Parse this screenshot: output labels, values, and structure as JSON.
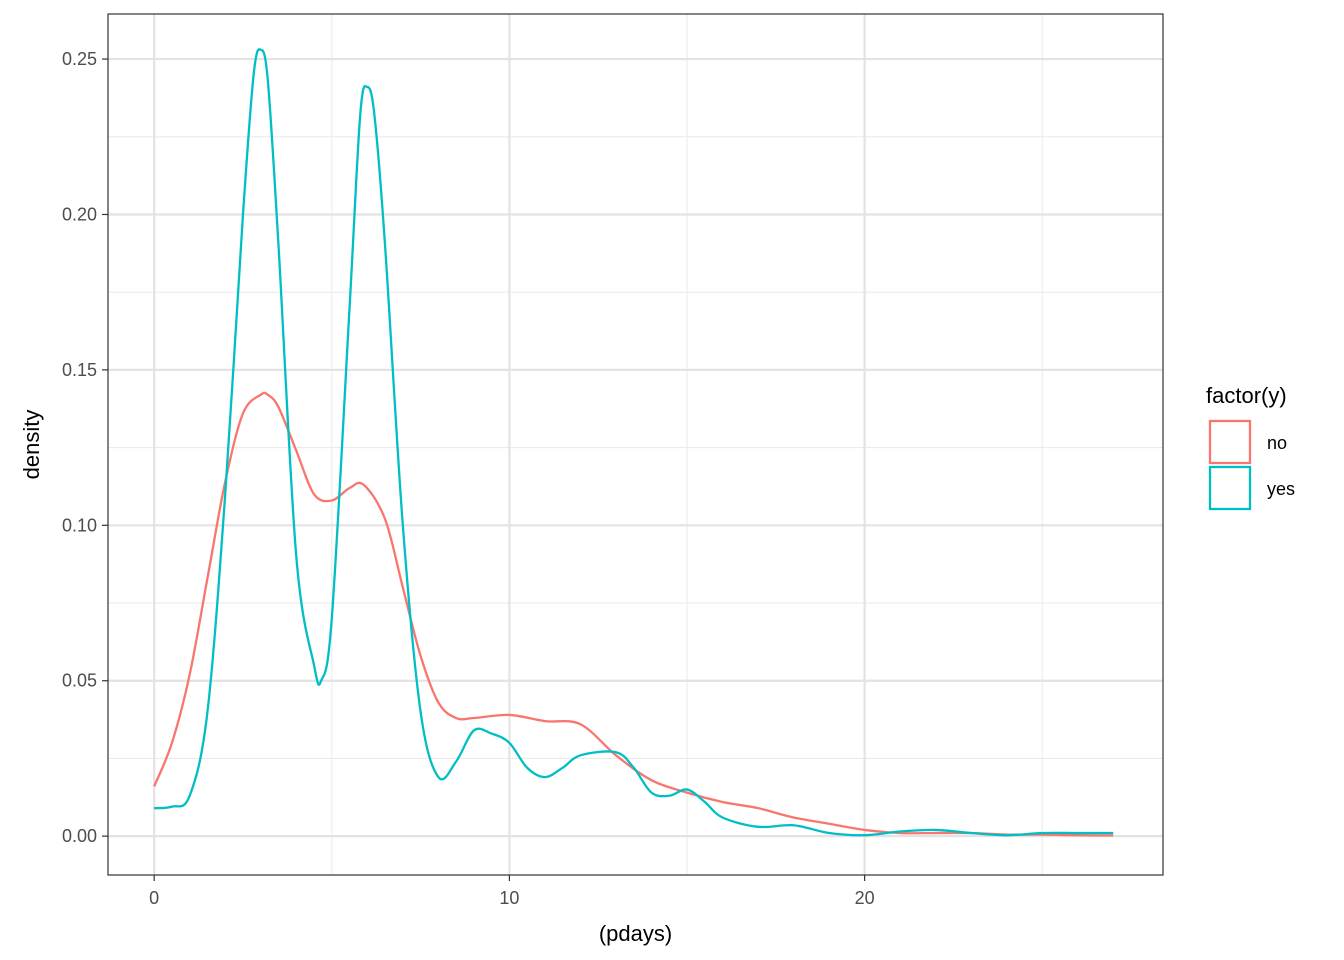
{
  "chart_data": {
    "type": "line",
    "xlabel": "(pdays)",
    "ylabel": "density",
    "xlim": [
      -1.3,
      28.4
    ],
    "ylim": [
      -0.0125,
      0.2645
    ],
    "x_ticks": [
      0,
      10,
      20
    ],
    "x_tick_labels": [
      "0",
      "10",
      "20"
    ],
    "x_minor_ticks": [
      5,
      15,
      25
    ],
    "y_ticks": [
      0,
      0.05,
      0.1,
      0.15,
      0.2,
      0.25
    ],
    "y_tick_labels": [
      "0.00",
      "0.05",
      "0.10",
      "0.15",
      "0.20",
      "0.25"
    ],
    "y_minor_ticks": [
      0.025,
      0.075,
      0.125,
      0.175,
      0.225
    ],
    "grid": true,
    "legend": {
      "title": "factor(y)",
      "position": "right"
    },
    "series": [
      {
        "name": "no",
        "color": "#F8766D",
        "x": [
          0,
          0.5,
          1,
          1.5,
          2,
          2.5,
          3,
          3.2,
          3.5,
          4,
          4.5,
          5,
          5.5,
          5.9,
          6.5,
          7,
          7.5,
          8,
          8.5,
          9,
          10,
          11,
          12,
          13,
          14,
          15,
          16,
          17,
          18,
          19,
          20,
          21,
          22,
          23,
          24,
          25,
          26,
          27
        ],
        "y": [
          0.016,
          0.03,
          0.052,
          0.083,
          0.114,
          0.136,
          0.142,
          0.142,
          0.138,
          0.124,
          0.11,
          0.108,
          0.112,
          0.113,
          0.102,
          0.08,
          0.058,
          0.043,
          0.038,
          0.038,
          0.039,
          0.037,
          0.036,
          0.026,
          0.018,
          0.014,
          0.011,
          0.009,
          0.006,
          0.004,
          0.002,
          0.001,
          0.001,
          0.001,
          0.0005,
          0.0005,
          0.0003,
          0.0002
        ]
      },
      {
        "name": "yes",
        "color": "#00BFC4",
        "x": [
          0,
          0.5,
          1,
          1.5,
          2,
          2.5,
          2.8,
          3,
          3.2,
          3.5,
          4,
          4.5,
          4.7,
          5,
          5.5,
          5.8,
          6,
          6.2,
          6.5,
          7,
          7.5,
          8,
          8.5,
          9,
          9.5,
          10,
          10.5,
          11,
          11.5,
          12,
          13,
          13.5,
          14,
          14.5,
          15,
          15.5,
          16,
          17,
          18,
          19,
          20,
          21,
          22,
          23,
          24,
          25,
          26,
          27
        ],
        "y": [
          0.009,
          0.0095,
          0.013,
          0.04,
          0.11,
          0.2,
          0.245,
          0.253,
          0.243,
          0.19,
          0.09,
          0.055,
          0.05,
          0.07,
          0.17,
          0.232,
          0.241,
          0.232,
          0.19,
          0.1,
          0.04,
          0.019,
          0.024,
          0.034,
          0.033,
          0.03,
          0.022,
          0.019,
          0.022,
          0.026,
          0.027,
          0.022,
          0.014,
          0.013,
          0.015,
          0.011,
          0.006,
          0.003,
          0.0035,
          0.001,
          0.0003,
          0.0015,
          0.002,
          0.001,
          0.0003,
          0.001,
          0.001,
          0.001
        ]
      }
    ]
  }
}
